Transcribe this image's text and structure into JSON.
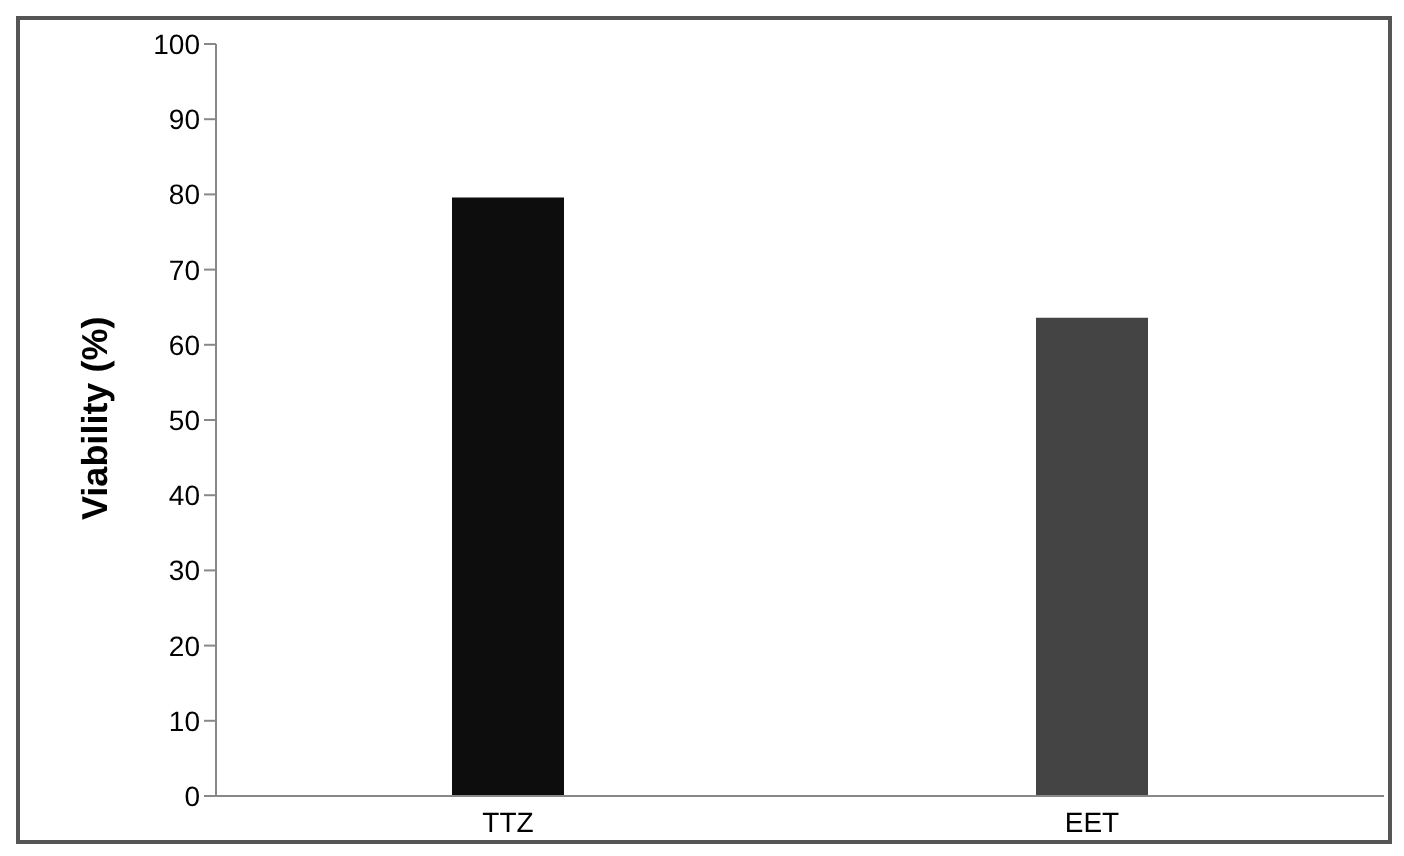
{
  "chart_data": {
    "type": "bar",
    "ylabel": "Viability (%)",
    "categories": [
      "TTZ",
      "EET"
    ],
    "values": [
      79.6,
      63.6
    ],
    "colors": [
      "#0d0d0d",
      "#444444"
    ],
    "ylim": [
      0,
      100
    ],
    "yticks": [
      0,
      10,
      20,
      30,
      40,
      50,
      60,
      70,
      80,
      90,
      100
    ],
    "grid": false
  }
}
